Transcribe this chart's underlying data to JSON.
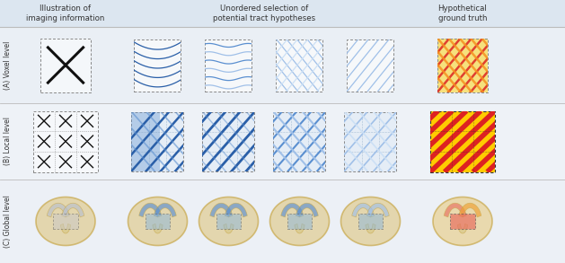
{
  "bg_color": "#eef2f7",
  "header_bg": "#dce6f0",
  "col_headers": [
    "Illustration of\nimaging information",
    "Unordered selection of\npotential tract hypotheses",
    "Hypothetical\nground truth"
  ],
  "row_labels": [
    "(A) Voxel level",
    "(B) Local level",
    "(C) Global level"
  ],
  "blue_dark": "#2a5fa8",
  "blue_mid": "#5a8fd0",
  "blue_light": "#a0c0e8",
  "blue_vlight": "#cce0f5",
  "red_color": "#dd2222",
  "orange_color": "#f59020",
  "yellow_color": "#f5dd20",
  "gold_color": "#c8a84b",
  "gray_light": "#c8c8c8",
  "black": "#111111",
  "white": "#ffffff"
}
